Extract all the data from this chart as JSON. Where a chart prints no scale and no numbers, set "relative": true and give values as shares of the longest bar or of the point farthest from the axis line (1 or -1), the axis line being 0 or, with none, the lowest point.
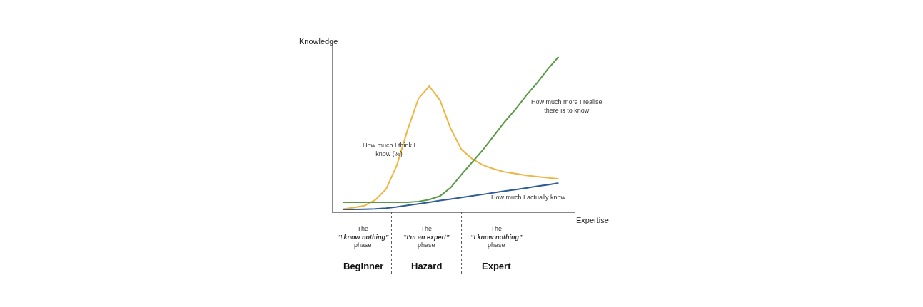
{
  "chart_data": {
    "type": "line",
    "relative": true,
    "legend": false,
    "xlabel": "Expertise",
    "ylabel": "Knowledge",
    "categories": [
      null,
      null,
      null,
      null,
      null,
      null,
      null,
      null,
      null,
      null,
      null,
      null,
      null,
      null,
      null,
      null,
      null,
      null,
      null,
      null,
      null
    ],
    "series": [
      {
        "name": "How much I think I\nknow (%)",
        "color": "#f0b440",
        "values": [
          0.016,
          0.025,
          0.038,
          0.075,
          0.145,
          0.3,
          0.53,
          0.73,
          0.81,
          0.72,
          0.535,
          0.4,
          0.34,
          0.3,
          0.275,
          0.256,
          0.245,
          0.234,
          0.225,
          0.218,
          0.212
        ]
      },
      {
        "name": "How much more I realise\nthere is to know",
        "color": "#5a9a44",
        "values": [
          0.06,
          0.06,
          0.06,
          0.06,
          0.06,
          0.06,
          0.06,
          0.065,
          0.077,
          0.1,
          0.155,
          0.24,
          0.32,
          0.4,
          0.49,
          0.58,
          0.66,
          0.75,
          0.83,
          0.92,
          1.0
        ]
      },
      {
        "name": "How much I actually know",
        "color": "#2e5c94",
        "values": [
          0.014,
          0.014,
          0.015,
          0.017,
          0.022,
          0.03,
          0.04,
          0.05,
          0.06,
          0.071,
          0.081,
          0.091,
          0.101,
          0.111,
          0.122,
          0.132,
          0.142,
          0.152,
          0.163,
          0.173,
          0.184
        ]
      }
    ],
    "annotations": [
      "The\n“I know nothing”\nphase",
      "The\n“I’m an expert”\nphase",
      "The\n“I know nothing”\nphase",
      "Beginner",
      "Hazard",
      "Expert"
    ]
  }
}
